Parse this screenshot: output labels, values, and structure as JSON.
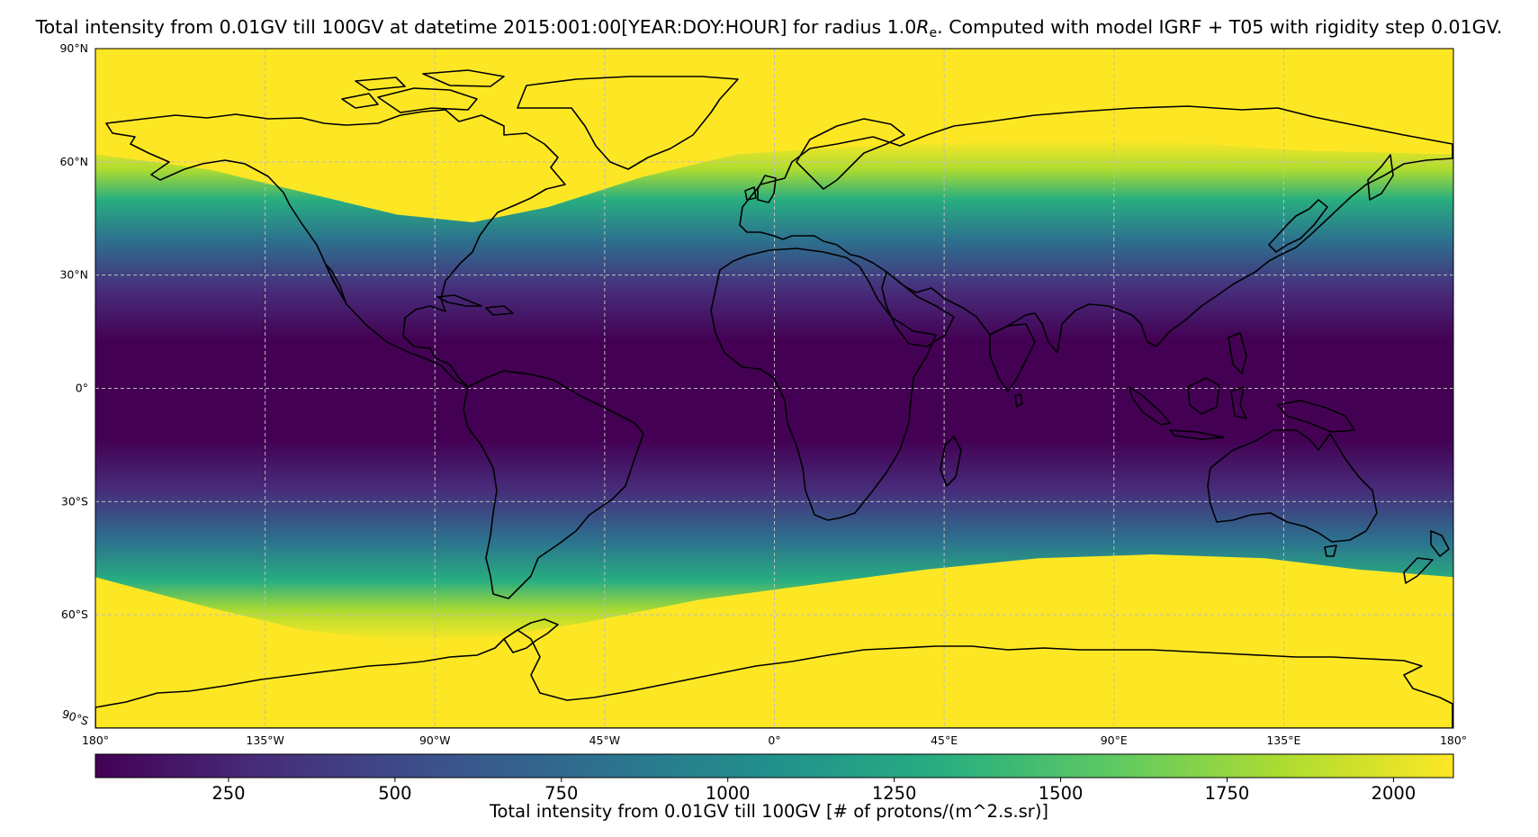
{
  "title_prefix": "Total intensity from 0.01GV till 100GV at datetime 2015:001:00[YEAR:DOY:HOUR] for radius 1.0",
  "title_r": "R",
  "title_r_sub": "e",
  "title_suffix": ". Computed with model IGRF + T05 with rigidity step 0.01GV.",
  "map": {
    "lat_labels": [
      {
        "value": 90,
        "label": "90°N"
      },
      {
        "value": 60,
        "label": "60°N"
      },
      {
        "value": 30,
        "label": "30°N"
      },
      {
        "value": 0,
        "label": "0°"
      },
      {
        "value": -30,
        "label": "30°S"
      },
      {
        "value": -60,
        "label": "60°S"
      },
      {
        "value": -90,
        "label": "90°S"
      }
    ],
    "lon_labels": [
      {
        "value": -180,
        "label": "180°"
      },
      {
        "value": -135,
        "label": "135°W"
      },
      {
        "value": -90,
        "label": "90°W"
      },
      {
        "value": -45,
        "label": "45°W"
      },
      {
        "value": 0,
        "label": "0°"
      },
      {
        "value": 45,
        "label": "45°E"
      },
      {
        "value": 90,
        "label": "90°E"
      },
      {
        "value": 135,
        "label": "135°E"
      },
      {
        "value": 180,
        "label": "180°"
      }
    ],
    "gridlines": true,
    "colormap": [
      "#440154",
      "#472d7b",
      "#3b528b",
      "#2c728e",
      "#21918c",
      "#28ae80",
      "#5ec962",
      "#addc30",
      "#fde725"
    ],
    "coastline_color": "#000000"
  },
  "colorbar": {
    "vmin": 50,
    "vmax": 2090,
    "ticks": [
      250,
      500,
      750,
      1000,
      1250,
      1500,
      1750,
      2000
    ],
    "label": "Total intensity from 0.01GV till 100GV [# of protons/(m^2.s.sr)]"
  }
}
